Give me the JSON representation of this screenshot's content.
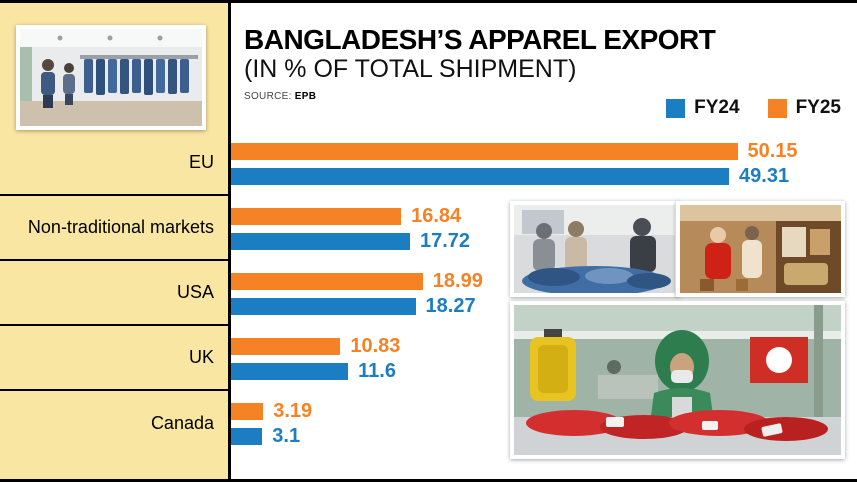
{
  "header": {
    "title": "BANGLADESH’S APPAREL EXPORT",
    "subtitle": "(IN % OF TOTAL SHIPMENT)",
    "source_label": "SOURCE:",
    "source_value": "EPB"
  },
  "legend": [
    {
      "label": "FY24",
      "color": "#1B7EC2"
    },
    {
      "label": "FY25",
      "color": "#F58225"
    }
  ],
  "chart_data": {
    "type": "bar",
    "orientation": "horizontal",
    "title": "BANGLADESH’S APPAREL EXPORT",
    "subtitle": "(IN % OF TOTAL SHIPMENT)",
    "source": "EPB",
    "categories": [
      "EU",
      "Non-traditional markets",
      "USA",
      "UK",
      "Canada"
    ],
    "series": [
      {
        "name": "FY25",
        "color": "#F58225",
        "values": [
          50.15,
          16.84,
          18.99,
          10.83,
          3.19
        ],
        "labels": [
          "50.15",
          "16.84",
          "18.99",
          "10.83",
          "3.19"
        ]
      },
      {
        "name": "FY24",
        "color": "#1B7EC2",
        "values": [
          49.31,
          17.72,
          18.27,
          11.6,
          3.1
        ],
        "labels": [
          "49.31",
          "17.72",
          "18.27",
          "11.6",
          "3.1"
        ]
      }
    ],
    "bar_order_top_to_bottom": [
      "FY25",
      "FY24"
    ],
    "xlim": [
      0,
      55
    ],
    "grid": false,
    "legend_position": "top-right",
    "value_labels": "end-of-bar"
  },
  "colors": {
    "fy24_blue": "#1B7EC2",
    "fy25_orange": "#F58225",
    "panel_cream": "#FAE6A3",
    "axis_black": "#000000"
  }
}
